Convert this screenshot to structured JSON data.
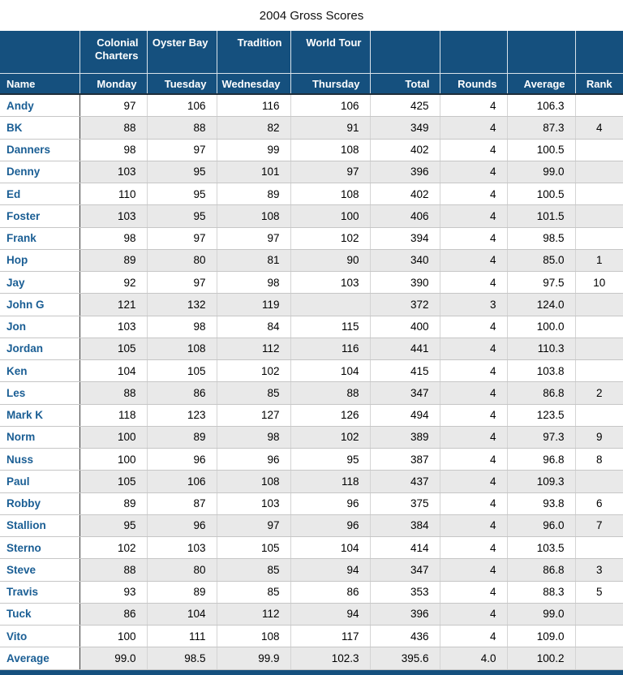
{
  "page": {
    "title": "2004 Gross Scores"
  },
  "colors": {
    "header_bg": "#15507E",
    "header_text": "#FFFFFF",
    "name_link_blue": "#1A5E94",
    "row_alt_bg": "#E9E9E9",
    "body_text": "#000000"
  },
  "chart_data": {
    "type": "table",
    "title": "2004 Gross Scores",
    "course_header": [
      "",
      "Colonial Charters",
      "Oyster Bay",
      "Tradition",
      "World Tour",
      "",
      "",
      "",
      ""
    ],
    "column_headers": [
      "Name",
      "Monday",
      "Tuesday",
      "Wednesday",
      "Thursday",
      "Total",
      "Rounds",
      "Average",
      "Rank"
    ],
    "rows": [
      [
        "Andy",
        "97",
        "106",
        "116",
        "106",
        "425",
        "4",
        "106.3",
        ""
      ],
      [
        "BK",
        "88",
        "88",
        "82",
        "91",
        "349",
        "4",
        "87.3",
        "4"
      ],
      [
        "Danners",
        "98",
        "97",
        "99",
        "108",
        "402",
        "4",
        "100.5",
        ""
      ],
      [
        "Denny",
        "103",
        "95",
        "101",
        "97",
        "396",
        "4",
        "99.0",
        ""
      ],
      [
        "Ed",
        "110",
        "95",
        "89",
        "108",
        "402",
        "4",
        "100.5",
        ""
      ],
      [
        "Foster",
        "103",
        "95",
        "108",
        "100",
        "406",
        "4",
        "101.5",
        ""
      ],
      [
        "Frank",
        "98",
        "97",
        "97",
        "102",
        "394",
        "4",
        "98.5",
        ""
      ],
      [
        "Hop",
        "89",
        "80",
        "81",
        "90",
        "340",
        "4",
        "85.0",
        "1"
      ],
      [
        "Jay",
        "92",
        "97",
        "98",
        "103",
        "390",
        "4",
        "97.5",
        "10"
      ],
      [
        "John G",
        "121",
        "132",
        "119",
        "",
        "372",
        "3",
        "124.0",
        ""
      ],
      [
        "Jon",
        "103",
        "98",
        "84",
        "115",
        "400",
        "4",
        "100.0",
        ""
      ],
      [
        "Jordan",
        "105",
        "108",
        "112",
        "116",
        "441",
        "4",
        "110.3",
        ""
      ],
      [
        "Ken",
        "104",
        "105",
        "102",
        "104",
        "415",
        "4",
        "103.8",
        ""
      ],
      [
        "Les",
        "88",
        "86",
        "85",
        "88",
        "347",
        "4",
        "86.8",
        "2"
      ],
      [
        "Mark K",
        "118",
        "123",
        "127",
        "126",
        "494",
        "4",
        "123.5",
        ""
      ],
      [
        "Norm",
        "100",
        "89",
        "98",
        "102",
        "389",
        "4",
        "97.3",
        "9"
      ],
      [
        "Nuss",
        "100",
        "96",
        "96",
        "95",
        "387",
        "4",
        "96.8",
        "8"
      ],
      [
        "Paul",
        "105",
        "106",
        "108",
        "118",
        "437",
        "4",
        "109.3",
        ""
      ],
      [
        "Robby",
        "89",
        "87",
        "103",
        "96",
        "375",
        "4",
        "93.8",
        "6"
      ],
      [
        "Stallion",
        "95",
        "96",
        "97",
        "96",
        "384",
        "4",
        "96.0",
        "7"
      ],
      [
        "Sterno",
        "102",
        "103",
        "105",
        "104",
        "414",
        "4",
        "103.5",
        ""
      ],
      [
        "Steve",
        "88",
        "80",
        "85",
        "94",
        "347",
        "4",
        "86.8",
        "3"
      ],
      [
        "Travis",
        "93",
        "89",
        "85",
        "86",
        "353",
        "4",
        "88.3",
        "5"
      ],
      [
        "Tuck",
        "86",
        "104",
        "112",
        "94",
        "396",
        "4",
        "99.0",
        ""
      ],
      [
        "Vito",
        "100",
        "111",
        "108",
        "117",
        "436",
        "4",
        "109.0",
        ""
      ]
    ],
    "average_row": [
      "Average",
      "99.0",
      "98.5",
      "99.9",
      "102.3",
      "395.6",
      "4.0",
      "100.2",
      ""
    ]
  }
}
